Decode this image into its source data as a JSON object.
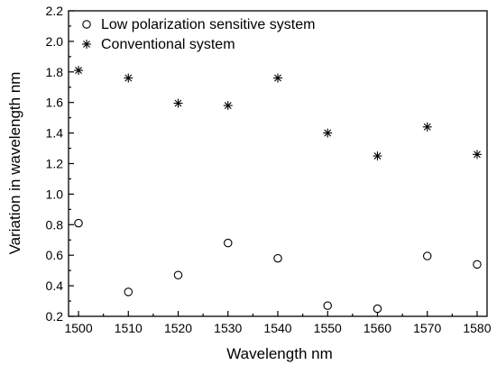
{
  "chart_data": {
    "type": "scatter",
    "xlabel": "Wavelength nm",
    "ylabel": "Variation in wavelength nm",
    "xlim": [
      1498,
      1582
    ],
    "ylim": [
      0.2,
      2.2
    ],
    "xticks": [
      1500,
      1510,
      1520,
      1530,
      1540,
      1550,
      1560,
      1570,
      1580
    ],
    "yticks": [
      0.2,
      0.4,
      0.6,
      0.8,
      1.0,
      1.2,
      1.4,
      1.6,
      1.8,
      2.0,
      2.2
    ],
    "grid": false,
    "legend_position": "top-left",
    "x": [
      1500,
      1510,
      1520,
      1530,
      1540,
      1550,
      1560,
      1570,
      1580
    ],
    "series": [
      {
        "name": "Low polarization sensitive system",
        "marker": "circle",
        "values": [
          0.81,
          0.36,
          0.47,
          0.68,
          0.58,
          0.27,
          0.25,
          0.595,
          0.54
        ]
      },
      {
        "name": "Conventional system",
        "marker": "asterisk",
        "values": [
          1.81,
          1.76,
          1.595,
          1.58,
          1.76,
          1.4,
          1.25,
          1.44,
          1.26
        ]
      }
    ]
  }
}
